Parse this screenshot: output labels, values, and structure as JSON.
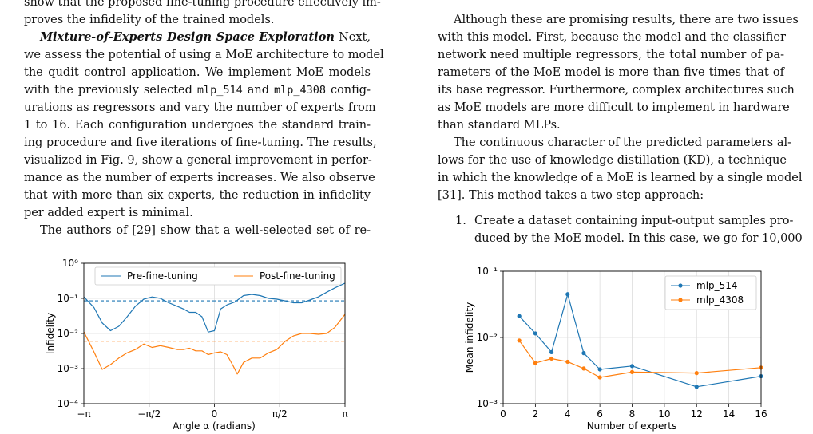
{
  "left_column": {
    "lines": [
      {
        "text": "show that the proposed fine-tuning procedure effectively im-"
      },
      {
        "text": "proves the infidelity of the trained models."
      },
      {
        "head": "Mixture-of-Experts Design Space Exploration",
        "text": " Next,"
      },
      {
        "text": "we assess the potential of using a MoE architecture to model"
      },
      {
        "text": "the qudit control application. We implement MoE models"
      },
      {
        "pre": "with the previously selected ",
        "code1": "mlp_514",
        "mid": " and ",
        "code2": "mlp_4308",
        "post": " config-"
      },
      {
        "text": "urations as regressors and vary the number of experts from"
      },
      {
        "text": "1 to 16. Each configuration undergoes the standard train-"
      },
      {
        "text": "ing procedure and five iterations of fine-tuning. The results,"
      },
      {
        "text": "visualized in Fig. 9, show a general improvement in perfor-"
      },
      {
        "text": "mance as the number of experts increases. We also observe"
      },
      {
        "text": "that with more than six experts, the reduction in infidelity"
      },
      {
        "text": "per added expert is minimal."
      },
      {
        "text": "The authors of [29] show that a well-selected set of re-"
      }
    ]
  },
  "right_column": {
    "lines": [
      {
        "text": "Although these are promising results, there are two issues"
      },
      {
        "text": "with this model. First, because the model and the classifier"
      },
      {
        "text": "network need multiple regressors, the total number of pa-"
      },
      {
        "text": "rameters of the MoE model is more than five times that of"
      },
      {
        "text": "its base regressor. Furthermore, complex architectures such"
      },
      {
        "text": "as MoE models are more difficult to implement in hardware"
      },
      {
        "text": "than standard MLPs."
      },
      {
        "text": "The continuous character of the predicted parameters al-"
      },
      {
        "text": "lows for the use of knowledge distillation (KD), a technique"
      },
      {
        "text": "in which the knowledge of a MoE is learned by a single model"
      },
      {
        "text": "[31]. This method takes a two step approach:"
      }
    ],
    "list_item": {
      "number": "1.",
      "line1": "Create a dataset containing input-output samples pro-",
      "line2": "duced by the MoE model. In this case, we go for 10,000"
    }
  },
  "chart_data": [
    {
      "type": "line",
      "xlabel": "Angle α (radians)",
      "ylabel": "Infidelity",
      "y_scale": "log",
      "ylim": [
        0.0001,
        1
      ],
      "xlim": [
        -3.1416,
        3.1416
      ],
      "x_ticks": [
        "−π",
        "−π/2",
        "0",
        "π/2",
        "π"
      ],
      "y_ticks": [
        "10⁰",
        "10⁻¹",
        "10⁻²",
        "10⁻³",
        "10⁻⁴"
      ],
      "grid": true,
      "legend": "top (two columns)",
      "series": [
        {
          "name": "Pre-fine-tuning",
          "color": "#1f77b4",
          "mean_dashed": 0.085,
          "x": [
            -3.14,
            -2.9,
            -2.7,
            -2.5,
            -2.3,
            -2.1,
            -1.9,
            -1.7,
            -1.5,
            -1.3,
            -1.1,
            -0.9,
            -0.75,
            -0.6,
            -0.45,
            -0.3,
            -0.15,
            0.0,
            0.15,
            0.3,
            0.5,
            0.7,
            0.9,
            1.1,
            1.3,
            1.5,
            1.7,
            1.9,
            2.1,
            2.3,
            2.5,
            2.7,
            2.9,
            3.14
          ],
          "y": [
            0.11,
            0.055,
            0.02,
            0.012,
            0.016,
            0.03,
            0.06,
            0.095,
            0.11,
            0.1,
            0.075,
            0.06,
            0.05,
            0.04,
            0.04,
            0.03,
            0.011,
            0.012,
            0.05,
            0.065,
            0.08,
            0.12,
            0.13,
            0.12,
            0.1,
            0.095,
            0.085,
            0.075,
            0.075,
            0.09,
            0.11,
            0.15,
            0.2,
            0.27
          ]
        },
        {
          "name": "Post-fine-tuning",
          "color": "#ff7f0e",
          "mean_dashed": 0.006,
          "x": [
            -3.14,
            -2.9,
            -2.7,
            -2.5,
            -2.3,
            -2.1,
            -1.9,
            -1.7,
            -1.5,
            -1.3,
            -1.1,
            -0.9,
            -0.75,
            -0.6,
            -0.45,
            -0.3,
            -0.15,
            0.0,
            0.15,
            0.3,
            0.45,
            0.55,
            0.7,
            0.9,
            1.1,
            1.3,
            1.5,
            1.7,
            1.9,
            2.1,
            2.3,
            2.5,
            2.7,
            2.9,
            3.14
          ],
          "y": [
            0.011,
            0.003,
            0.00095,
            0.0013,
            0.002,
            0.0028,
            0.0035,
            0.005,
            0.004,
            0.0045,
            0.004,
            0.0035,
            0.0035,
            0.0038,
            0.0032,
            0.0032,
            0.0025,
            0.0028,
            0.003,
            0.0025,
            0.0012,
            0.0007,
            0.0015,
            0.002,
            0.002,
            0.0028,
            0.0035,
            0.006,
            0.0085,
            0.01,
            0.01,
            0.0095,
            0.01,
            0.015,
            0.035
          ]
        }
      ]
    },
    {
      "type": "line",
      "xlabel": "Number of experts",
      "ylabel": "Mean infidelity",
      "y_scale": "log",
      "ylim": [
        0.001,
        0.1
      ],
      "xlim": [
        0,
        16
      ],
      "x_ticks": [
        "0",
        "2",
        "4",
        "6",
        "8",
        "10",
        "12",
        "14",
        "16"
      ],
      "y_ticks": [
        "10⁻¹",
        "10⁻²",
        "10⁻³"
      ],
      "grid": true,
      "legend": "top-right",
      "series": [
        {
          "name": "mlp_514",
          "color": "#1f77b4",
          "x": [
            1,
            2,
            3,
            4,
            5,
            6,
            8,
            12,
            16
          ],
          "y": [
            0.021,
            0.0115,
            0.006,
            0.045,
            0.0058,
            0.0033,
            0.0037,
            0.0018,
            0.0026
          ]
        },
        {
          "name": "mlp_4308",
          "color": "#ff7f0e",
          "x": [
            1,
            2,
            3,
            4,
            5,
            6,
            8,
            12,
            16
          ],
          "y": [
            0.009,
            0.0041,
            0.0048,
            0.0043,
            0.0034,
            0.0025,
            0.003,
            0.0029,
            0.0035
          ]
        }
      ]
    }
  ]
}
